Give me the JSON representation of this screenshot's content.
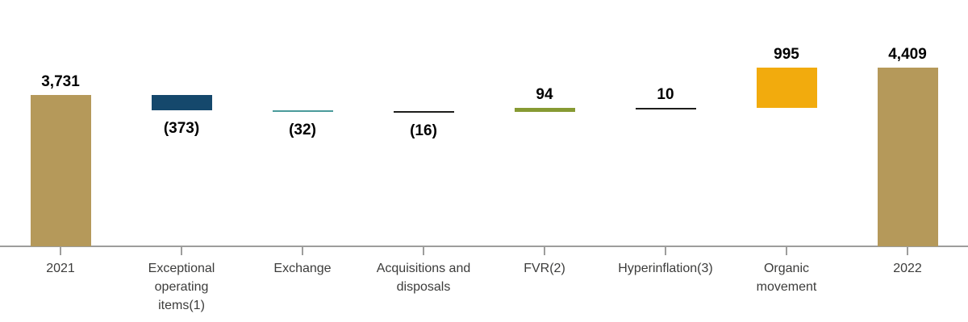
{
  "chart_data": {
    "type": "bar",
    "subtype": "waterfall",
    "title": "",
    "xlabel": "",
    "ylabel": "",
    "ylim": [
      0,
      4700
    ],
    "grid": false,
    "legend": false,
    "categories": [
      "2021",
      "Exceptional operating items(1)",
      "Exchange",
      "Acquisitions and disposals",
      "FVR(2)",
      "Hyperinflation(3)",
      "Organic movement",
      "2022"
    ],
    "category_lines": [
      [
        "2021"
      ],
      [
        "Exceptional",
        "operating",
        "items(1)"
      ],
      [
        "Exchange"
      ],
      [
        "Acquisitions and",
        "disposals"
      ],
      [
        "FVR(2)"
      ],
      [
        "Hyperinflation(3)"
      ],
      [
        "Organic",
        "movement"
      ],
      [
        "2022"
      ]
    ],
    "bars": [
      {
        "name": "2021",
        "kind": "total",
        "value": 3731,
        "label": "3,731",
        "label_position": "above",
        "color": "#b5995a"
      },
      {
        "name": "Exceptional operating items(1)",
        "kind": "delta",
        "value": -373,
        "label": "(373)",
        "label_position": "below",
        "color": "#15486c"
      },
      {
        "name": "Exchange",
        "kind": "delta",
        "value": -32,
        "label": "(32)",
        "label_position": "below",
        "color": "#4a9b9b"
      },
      {
        "name": "Acquisitions and disposals",
        "kind": "delta",
        "value": -16,
        "label": "(16)",
        "label_position": "below",
        "color": "#1d1d1b"
      },
      {
        "name": "FVR(2)",
        "kind": "delta",
        "value": 94,
        "label": "94",
        "label_position": "above",
        "color": "#879a33"
      },
      {
        "name": "Hyperinflation(3)",
        "kind": "delta",
        "value": 10,
        "label": "10",
        "label_position": "above",
        "color": "#1d1d1b"
      },
      {
        "name": "Organic movement",
        "kind": "delta",
        "value": 995,
        "label": "995",
        "label_position": "above",
        "color": "#f2ab0d"
      },
      {
        "name": "2022",
        "kind": "total",
        "value": 4409,
        "label": "4,409",
        "label_position": "above",
        "color": "#b5995a"
      }
    ],
    "colors": {
      "axis": "#9d9d9c",
      "value_label": "#000000",
      "category_label": "#3c3c3b",
      "background": "#ffffff"
    }
  }
}
